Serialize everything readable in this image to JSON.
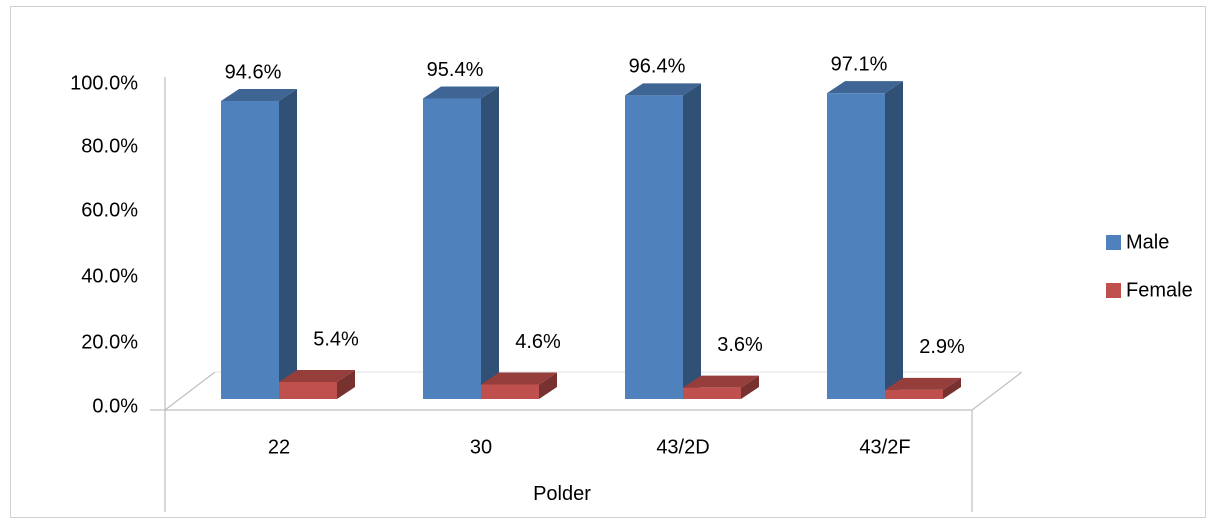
{
  "chart_data": {
    "type": "bar",
    "title": "",
    "xlabel": "Polder",
    "ylabel": "",
    "categories": [
      "22",
      "30",
      "43/2D",
      "43/2F"
    ],
    "ylim": [
      0,
      100
    ],
    "yticks": [
      "0.0%",
      "20.0%",
      "40.0%",
      "60.0%",
      "80.0%",
      "100.0%"
    ],
    "legend_position": "right",
    "series": [
      {
        "name": "Male",
        "values": [
          94.6,
          95.4,
          96.4,
          97.1
        ],
        "labels": [
          "94.6%",
          "95.4%",
          "96.4%",
          "97.1%"
        ],
        "color": "#4F81BD"
      },
      {
        "name": "Female",
        "values": [
          5.4,
          4.6,
          3.6,
          2.9
        ],
        "labels": [
          "5.4%",
          "4.6%",
          "3.6%",
          "2.9%"
        ],
        "color": "#C0504D"
      }
    ]
  }
}
